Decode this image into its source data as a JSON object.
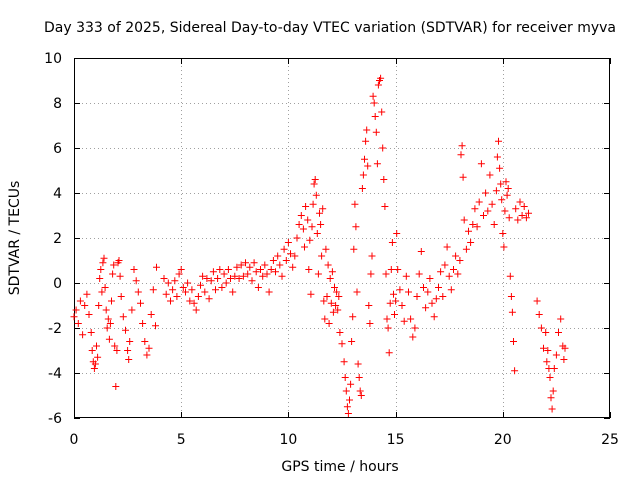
{
  "chart_data": {
    "type": "scatter",
    "title": "Day 333 of 2025, Sidereal Day-to-day VTEC variation (SDTVAR) for receiver myva",
    "xlabel": "GPS time / hours",
    "ylabel": "SDTVAR / TECUs",
    "xlim": [
      0,
      25
    ],
    "ylim": [
      -6,
      10
    ],
    "xticks": [
      0,
      5,
      10,
      15,
      20,
      25
    ],
    "yticks": [
      -6,
      -4,
      -2,
      0,
      2,
      4,
      6,
      8,
      10
    ],
    "grid": true,
    "marker": "+",
    "series_color": "#ff0000",
    "series": [
      {
        "name": "SDTVAR",
        "points": [
          [
            0.0,
            -1.5
          ],
          [
            0.1,
            -1.2
          ],
          [
            0.2,
            -1.8
          ],
          [
            0.3,
            -0.8
          ],
          [
            0.4,
            -2.3
          ],
          [
            0.5,
            -1.0
          ],
          [
            0.6,
            -0.5
          ],
          [
            0.7,
            -1.4
          ],
          [
            0.8,
            -2.2
          ],
          [
            0.85,
            -3.0
          ],
          [
            0.9,
            -3.5
          ],
          [
            0.95,
            -3.8
          ],
          [
            1.0,
            -3.6
          ],
          [
            1.05,
            -2.8
          ],
          [
            1.1,
            -3.3
          ],
          [
            1.15,
            -1.0
          ],
          [
            1.2,
            0.2
          ],
          [
            1.25,
            0.6
          ],
          [
            1.3,
            -0.4
          ],
          [
            1.35,
            0.9
          ],
          [
            1.4,
            1.1
          ],
          [
            1.45,
            -0.2
          ],
          [
            1.5,
            -1.2
          ],
          [
            1.55,
            -2.0
          ],
          [
            1.6,
            -1.6
          ],
          [
            1.65,
            -2.5
          ],
          [
            1.7,
            -1.8
          ],
          [
            1.75,
            -0.8
          ],
          [
            1.8,
            0.4
          ],
          [
            1.85,
            0.8
          ],
          [
            1.9,
            -2.8
          ],
          [
            1.95,
            -4.6
          ],
          [
            2.0,
            -3.0
          ],
          [
            2.05,
            0.9
          ],
          [
            2.1,
            1.0
          ],
          [
            2.15,
            0.3
          ],
          [
            2.2,
            -0.6
          ],
          [
            2.3,
            -1.5
          ],
          [
            2.4,
            -2.1
          ],
          [
            2.5,
            -3.0
          ],
          [
            2.55,
            -3.4
          ],
          [
            2.6,
            -2.6
          ],
          [
            2.7,
            -1.2
          ],
          [
            2.8,
            0.6
          ],
          [
            2.9,
            0.1
          ],
          [
            3.0,
            -0.4
          ],
          [
            3.1,
            -0.9
          ],
          [
            3.2,
            -1.8
          ],
          [
            3.3,
            -2.6
          ],
          [
            3.4,
            -3.2
          ],
          [
            3.5,
            -2.9
          ],
          [
            3.6,
            -1.4
          ],
          [
            3.7,
            -0.3
          ],
          [
            3.8,
            -1.9
          ],
          [
            3.85,
            0.7
          ],
          [
            4.2,
            0.2
          ],
          [
            4.3,
            -0.5
          ],
          [
            4.4,
            0.0
          ],
          [
            4.5,
            -0.8
          ],
          [
            4.6,
            -0.3
          ],
          [
            4.7,
            0.1
          ],
          [
            4.8,
            -0.6
          ],
          [
            4.9,
            0.4
          ],
          [
            5.0,
            0.6
          ],
          [
            5.1,
            -0.2
          ],
          [
            5.2,
            -0.4
          ],
          [
            5.3,
            0.0
          ],
          [
            5.4,
            -0.8
          ],
          [
            5.5,
            -0.3
          ],
          [
            5.6,
            -0.9
          ],
          [
            5.7,
            -1.2
          ],
          [
            5.8,
            -0.6
          ],
          [
            5.9,
            -0.1
          ],
          [
            6.0,
            0.3
          ],
          [
            6.1,
            -0.4
          ],
          [
            6.2,
            0.2
          ],
          [
            6.3,
            -0.7
          ],
          [
            6.4,
            0.1
          ],
          [
            6.5,
            0.5
          ],
          [
            6.6,
            -0.3
          ],
          [
            6.7,
            0.2
          ],
          [
            6.8,
            0.6
          ],
          [
            6.9,
            -0.2
          ],
          [
            7.0,
            0.4
          ],
          [
            7.1,
            0.0
          ],
          [
            7.2,
            0.6
          ],
          [
            7.3,
            0.2
          ],
          [
            7.4,
            -0.4
          ],
          [
            7.5,
            0.3
          ],
          [
            7.6,
            0.7
          ],
          [
            7.7,
            0.2
          ],
          [
            7.8,
            0.8
          ],
          [
            7.9,
            0.3
          ],
          [
            8.0,
            0.9
          ],
          [
            8.1,
            0.4
          ],
          [
            8.2,
            0.7
          ],
          [
            8.3,
            0.1
          ],
          [
            8.4,
            0.9
          ],
          [
            8.5,
            0.5
          ],
          [
            8.6,
            -0.2
          ],
          [
            8.7,
            0.6
          ],
          [
            8.8,
            0.3
          ],
          [
            8.9,
            0.8
          ],
          [
            9.0,
            0.4
          ],
          [
            9.1,
            -0.4
          ],
          [
            9.2,
            0.6
          ],
          [
            9.3,
            1.0
          ],
          [
            9.4,
            0.5
          ],
          [
            9.5,
            1.2
          ],
          [
            9.6,
            0.8
          ],
          [
            9.7,
            0.3
          ],
          [
            9.8,
            1.5
          ],
          [
            9.9,
            1.0
          ],
          [
            10.0,
            1.8
          ],
          [
            10.1,
            1.3
          ],
          [
            10.2,
            0.7
          ],
          [
            10.3,
            1.2
          ],
          [
            10.4,
            2.0
          ],
          [
            10.5,
            2.6
          ],
          [
            10.6,
            3.0
          ],
          [
            10.7,
            2.4
          ],
          [
            10.75,
            1.6
          ],
          [
            10.8,
            3.4
          ],
          [
            10.9,
            2.8
          ],
          [
            10.95,
            0.6
          ],
          [
            11.0,
            1.9
          ],
          [
            11.05,
            -0.5
          ],
          [
            11.1,
            2.5
          ],
          [
            11.15,
            3.5
          ],
          [
            11.2,
            4.4
          ],
          [
            11.25,
            4.6
          ],
          [
            11.3,
            3.9
          ],
          [
            11.35,
            2.2
          ],
          [
            11.4,
            0.4
          ],
          [
            11.45,
            3.1
          ],
          [
            11.5,
            2.6
          ],
          [
            11.55,
            1.2
          ],
          [
            11.6,
            3.3
          ],
          [
            11.65,
            -0.8
          ],
          [
            11.7,
            -1.6
          ],
          [
            11.75,
            1.5
          ],
          [
            11.8,
            -0.6
          ],
          [
            11.85,
            0.8
          ],
          [
            11.9,
            -1.8
          ],
          [
            11.95,
            0.2
          ],
          [
            12.0,
            -0.9
          ],
          [
            12.05,
            0.5
          ],
          [
            12.1,
            -1.3
          ],
          [
            12.15,
            -0.2
          ],
          [
            12.2,
            -1.0
          ],
          [
            12.25,
            -0.4
          ],
          [
            12.3,
            -1.2
          ],
          [
            12.35,
            -0.6
          ],
          [
            12.4,
            -2.2
          ],
          [
            12.5,
            -2.7
          ],
          [
            12.6,
            -3.5
          ],
          [
            12.65,
            -4.2
          ],
          [
            12.7,
            -4.8
          ],
          [
            12.75,
            -5.5
          ],
          [
            12.8,
            -5.8
          ],
          [
            12.85,
            -5.2
          ],
          [
            12.9,
            -4.5
          ],
          [
            12.95,
            -2.6
          ],
          [
            13.0,
            -1.5
          ],
          [
            13.05,
            1.5
          ],
          [
            13.1,
            3.5
          ],
          [
            13.15,
            2.5
          ],
          [
            13.2,
            -0.4
          ],
          [
            13.25,
            -3.6
          ],
          [
            13.3,
            -4.2
          ],
          [
            13.35,
            -4.8
          ],
          [
            13.4,
            -5.0
          ],
          [
            13.45,
            4.2
          ],
          [
            13.5,
            4.8
          ],
          [
            13.55,
            5.5
          ],
          [
            13.6,
            6.3
          ],
          [
            13.65,
            6.8
          ],
          [
            13.7,
            5.2
          ],
          [
            13.75,
            -1.0
          ],
          [
            13.8,
            -1.8
          ],
          [
            13.85,
            0.4
          ],
          [
            13.9,
            1.2
          ],
          [
            13.95,
            8.3
          ],
          [
            14.0,
            8.0
          ],
          [
            14.05,
            7.4
          ],
          [
            14.1,
            6.7
          ],
          [
            14.15,
            5.3
          ],
          [
            14.2,
            8.8
          ],
          [
            14.25,
            9.0
          ],
          [
            14.3,
            9.1
          ],
          [
            14.35,
            7.6
          ],
          [
            14.4,
            6.0
          ],
          [
            14.45,
            4.6
          ],
          [
            14.5,
            3.4
          ],
          [
            14.55,
            0.4
          ],
          [
            14.6,
            -1.6
          ],
          [
            14.65,
            -2.0
          ],
          [
            14.7,
            -3.1
          ],
          [
            14.75,
            -0.9
          ],
          [
            14.8,
            0.6
          ],
          [
            14.85,
            1.8
          ],
          [
            14.9,
            -0.5
          ],
          [
            14.95,
            -1.4
          ],
          [
            15.0,
            -0.8
          ],
          [
            15.05,
            2.2
          ],
          [
            15.1,
            0.6
          ],
          [
            15.2,
            -0.3
          ],
          [
            15.3,
            -1.0
          ],
          [
            15.4,
            -1.7
          ],
          [
            15.5,
            0.3
          ],
          [
            15.6,
            -0.4
          ],
          [
            15.7,
            -1.6
          ],
          [
            15.8,
            -2.4
          ],
          [
            15.9,
            -2.0
          ],
          [
            16.0,
            -0.6
          ],
          [
            16.1,
            0.4
          ],
          [
            16.2,
            1.4
          ],
          [
            16.3,
            -0.2
          ],
          [
            16.4,
            -1.1
          ],
          [
            16.5,
            -0.4
          ],
          [
            16.6,
            0.2
          ],
          [
            16.7,
            -0.9
          ],
          [
            16.8,
            -1.5
          ],
          [
            16.9,
            -0.7
          ],
          [
            17.0,
            -0.2
          ],
          [
            17.1,
            0.5
          ],
          [
            17.2,
            -0.6
          ],
          [
            17.3,
            0.8
          ],
          [
            17.4,
            1.6
          ],
          [
            17.5,
            0.3
          ],
          [
            17.6,
            -0.3
          ],
          [
            17.7,
            0.6
          ],
          [
            17.8,
            1.2
          ],
          [
            17.9,
            0.4
          ],
          [
            18.0,
            1.0
          ],
          [
            18.05,
            5.7
          ],
          [
            18.1,
            6.1
          ],
          [
            18.15,
            4.7
          ],
          [
            18.2,
            2.8
          ],
          [
            18.3,
            1.5
          ],
          [
            18.4,
            2.3
          ],
          [
            18.5,
            1.8
          ],
          [
            18.6,
            2.6
          ],
          [
            18.7,
            3.3
          ],
          [
            18.8,
            2.5
          ],
          [
            18.9,
            3.6
          ],
          [
            19.0,
            5.3
          ],
          [
            19.1,
            3.0
          ],
          [
            19.2,
            4.0
          ],
          [
            19.3,
            3.2
          ],
          [
            19.4,
            4.8
          ],
          [
            19.5,
            3.5
          ],
          [
            19.6,
            2.6
          ],
          [
            19.7,
            4.1
          ],
          [
            19.75,
            5.6
          ],
          [
            19.8,
            6.3
          ],
          [
            19.85,
            5.1
          ],
          [
            19.9,
            4.4
          ],
          [
            19.95,
            3.7
          ],
          [
            20.0,
            2.2
          ],
          [
            20.05,
            1.6
          ],
          [
            20.1,
            3.2
          ],
          [
            20.15,
            4.5
          ],
          [
            20.2,
            3.9
          ],
          [
            20.25,
            4.2
          ],
          [
            20.3,
            2.9
          ],
          [
            20.35,
            0.3
          ],
          [
            20.4,
            -0.6
          ],
          [
            20.45,
            -1.3
          ],
          [
            20.5,
            -2.6
          ],
          [
            20.55,
            -3.9
          ],
          [
            20.6,
            3.3
          ],
          [
            20.7,
            2.8
          ],
          [
            20.8,
            3.6
          ],
          [
            20.9,
            3.0
          ],
          [
            21.0,
            3.4
          ],
          [
            21.1,
            2.9
          ],
          [
            21.2,
            3.1
          ],
          [
            21.6,
            -0.8
          ],
          [
            21.7,
            -1.4
          ],
          [
            21.8,
            -2.0
          ],
          [
            21.9,
            -2.9
          ],
          [
            22.0,
            -2.2
          ],
          [
            22.05,
            -3.5
          ],
          [
            22.1,
            -3.0
          ],
          [
            22.15,
            -3.8
          ],
          [
            22.2,
            -4.2
          ],
          [
            22.25,
            -5.1
          ],
          [
            22.3,
            -5.6
          ],
          [
            22.35,
            -4.8
          ],
          [
            22.4,
            -3.8
          ],
          [
            22.5,
            -3.2
          ],
          [
            22.6,
            -2.2
          ],
          [
            22.7,
            -1.6
          ],
          [
            22.8,
            -2.8
          ],
          [
            22.85,
            -3.4
          ],
          [
            22.9,
            -2.9
          ]
        ]
      }
    ]
  }
}
